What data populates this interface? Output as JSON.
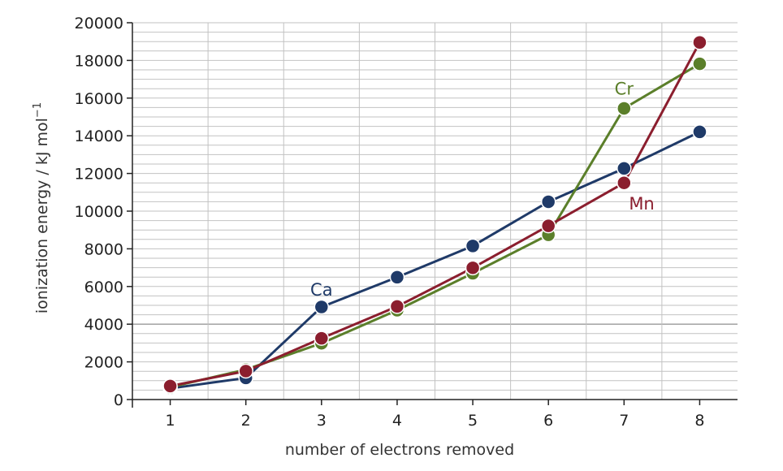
{
  "chart_data": {
    "type": "line",
    "title": "",
    "xlabel": "number of electrons removed",
    "ylabel": "ionization energy / kJ mol",
    "ylabel_superscript": "−1",
    "x": [
      1,
      2,
      3,
      4,
      5,
      6,
      7,
      8
    ],
    "xlim": [
      0.5,
      8.5
    ],
    "ylim": [
      0,
      20000
    ],
    "yticks": [
      0,
      2000,
      4000,
      6000,
      8000,
      10000,
      12000,
      14000,
      16000,
      18000,
      20000
    ],
    "grid": true,
    "legend": "inline labels",
    "series": [
      {
        "name": "Ca",
        "color": "#1f3a68",
        "values": [
          590,
          1145,
          4912,
          6491,
          8153,
          10496,
          12270,
          14207
        ]
      },
      {
        "name": "Cr",
        "color": "#5b7f2a",
        "values": [
          653,
          1592,
          2987,
          4743,
          6702,
          8744,
          15455,
          17820
        ]
      },
      {
        "name": "Mn",
        "color": "#8b1e2e",
        "values": [
          717,
          1509,
          3248,
          4940,
          6990,
          9220,
          11500,
          18956
        ]
      }
    ]
  }
}
